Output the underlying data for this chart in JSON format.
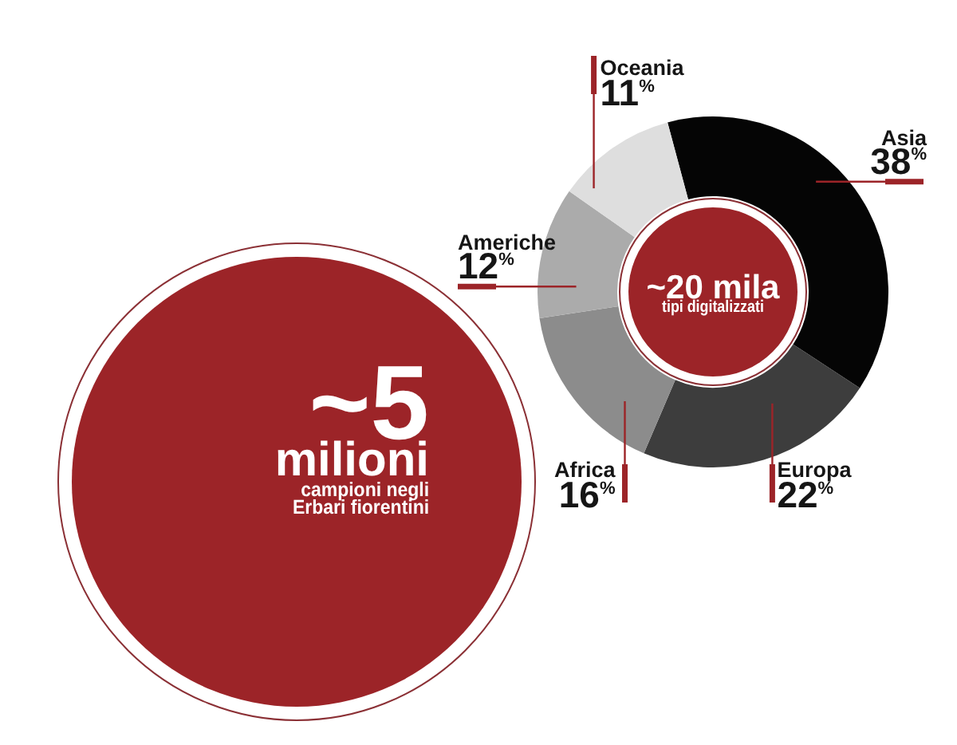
{
  "chart_data": [
    {
      "type": "other",
      "annotations": [
        "~5",
        "milioni",
        "campioni negli\nErbari fiorentini"
      ]
    },
    {
      "type": "donut",
      "categories": [
        "Asia",
        "Europa",
        "Africa",
        "Americhe",
        "Oceania"
      ],
      "values": [
        38,
        22,
        16,
        12,
        11
      ],
      "colors": [
        "#050505",
        "#3d3d3d",
        "#8c8c8c",
        "#ababab",
        "#dedede"
      ],
      "value_labels": [
        "38$^{%}$",
        "22$^{%}$",
        "16$^{%}$",
        "12$^{%}$",
        "11$^{%}$"
      ],
      "annotations": [
        "~20 mila",
        "tipi digitalizzati"
      ]
    }
  ]
}
